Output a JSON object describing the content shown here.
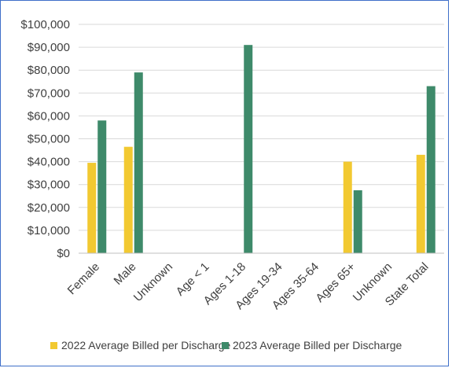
{
  "chart_data": {
    "type": "bar",
    "title": "",
    "xlabel": "",
    "ylabel": "",
    "categories": [
      "Female",
      "Male",
      "Unknown",
      "Age < 1",
      "Ages 1-18",
      "Ages 19-34",
      "Ages 35-64",
      "Ages 65+",
      "Unknown",
      "State Total"
    ],
    "series": [
      {
        "name": "2022 Average Billed per Discharge",
        "color": "#f2c931",
        "values": [
          39500,
          46500,
          null,
          null,
          null,
          null,
          null,
          40000,
          null,
          43000
        ]
      },
      {
        "name": "2023 Average Billed per Discharge",
        "color": "#3e8a6a",
        "values": [
          58000,
          79000,
          null,
          null,
          91000,
          null,
          null,
          27500,
          null,
          73000
        ]
      }
    ],
    "ylim": [
      0,
      100000
    ],
    "yticks": [
      0,
      10000,
      20000,
      30000,
      40000,
      50000,
      60000,
      70000,
      80000,
      90000,
      100000
    ],
    "ytick_labels": [
      "$0",
      "$10,000",
      "$20,000",
      "$30,000",
      "$40,000",
      "$50,000",
      "$60,000",
      "$70,000",
      "$80,000",
      "$90,000",
      "$100,000"
    ],
    "grid": true,
    "legend_position": "bottom"
  }
}
